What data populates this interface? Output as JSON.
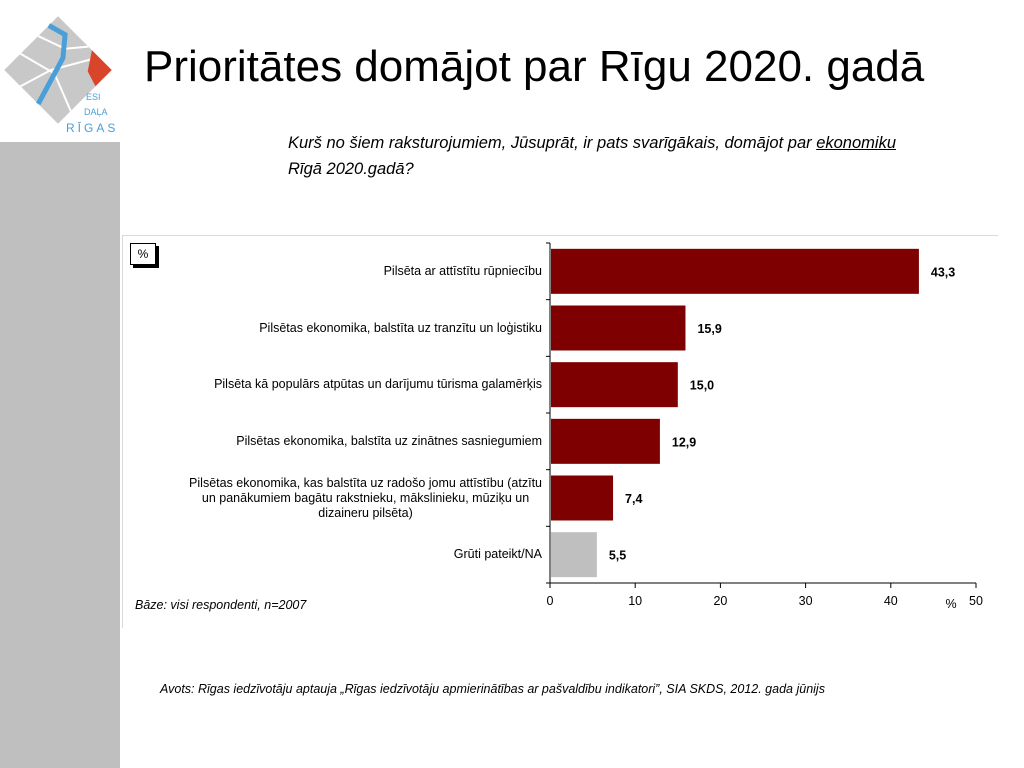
{
  "slide": {
    "title": "Prioritātes domājot par Rīgu 2020. gadā",
    "question_before": "Kurš no šiem raksturojumiem, Jūsuprāt, ir pats svarīgākais, domājot par ",
    "question_underlined": "ekonomiku",
    "question_after": " Rīgā 2020.gadā?",
    "source": "Avots: Rīgas iedzīvotāju aptauja „Rīgas iedzīvotāju apmierinātības ar pašvaldību indikatori”, SIA SKDS, 2012. gada jūnijs"
  },
  "logo": {
    "line1": "ESI",
    "line2": "DAĻA",
    "line3": "RĪGAS",
    "colors": {
      "blue": "#4a9fd8",
      "red": "#d9452b",
      "grey": "#c8c8c8"
    }
  },
  "chart_data": {
    "type": "bar",
    "orientation": "horizontal",
    "unit_box": "%",
    "categories": [
      "Pilsēta ar attīstītu rūpniecību",
      "Pilsētas ekonomika, balstīta uz tranzītu un loģistiku",
      "Pilsēta kā populārs atpūtas un darījumu tūrisma galamērķis",
      "Pilsētas ekonomika, balstīta uz zinātnes sasniegumiem",
      "Pilsētas ekonomika, kas balstīta uz radošo jomu attīstību (atzītu un panākumiem bagātu rakstnieku, mākslinieku, mūziķu un dizaineru pilsēta)",
      "Grūti pateikt/NA"
    ],
    "category_lines": [
      [
        "Pilsēta ar attīstītu rūpniecību"
      ],
      [
        "Pilsētas ekonomika, balstīta uz tranzītu un loģistiku"
      ],
      [
        "Pilsēta kā populārs atpūtas un darījumu tūrisma galamērķis"
      ],
      [
        "Pilsētas ekonomika, balstīta uz zinātnes sasniegumiem"
      ],
      [
        "Pilsētas ekonomika, kas balstīta uz radošo jomu attīstību (atzītu",
        "un panākumiem bagātu rakstnieku, mākslinieku, mūziķu un",
        "dizaineru pilsēta)"
      ],
      [
        "Grūti pateikt/NA"
      ]
    ],
    "values": [
      43.3,
      15.9,
      15.0,
      12.9,
      7.4,
      5.5
    ],
    "value_labels": [
      "43,3",
      "15,9",
      "15,0",
      "12,9",
      "7,4",
      "5,5"
    ],
    "bar_colors": [
      "#7f0000",
      "#7f0000",
      "#7f0000",
      "#7f0000",
      "#7f0000",
      "#bfbfbf"
    ],
    "xlim": [
      0,
      50
    ],
    "xticks": [
      0,
      10,
      20,
      30,
      40,
      50
    ],
    "xtick_labels": [
      "0",
      "10",
      "20",
      "30",
      "40",
      "50"
    ],
    "x_unit_label": "%",
    "base_note": "Bāze: visi respondenti, n=2007"
  }
}
